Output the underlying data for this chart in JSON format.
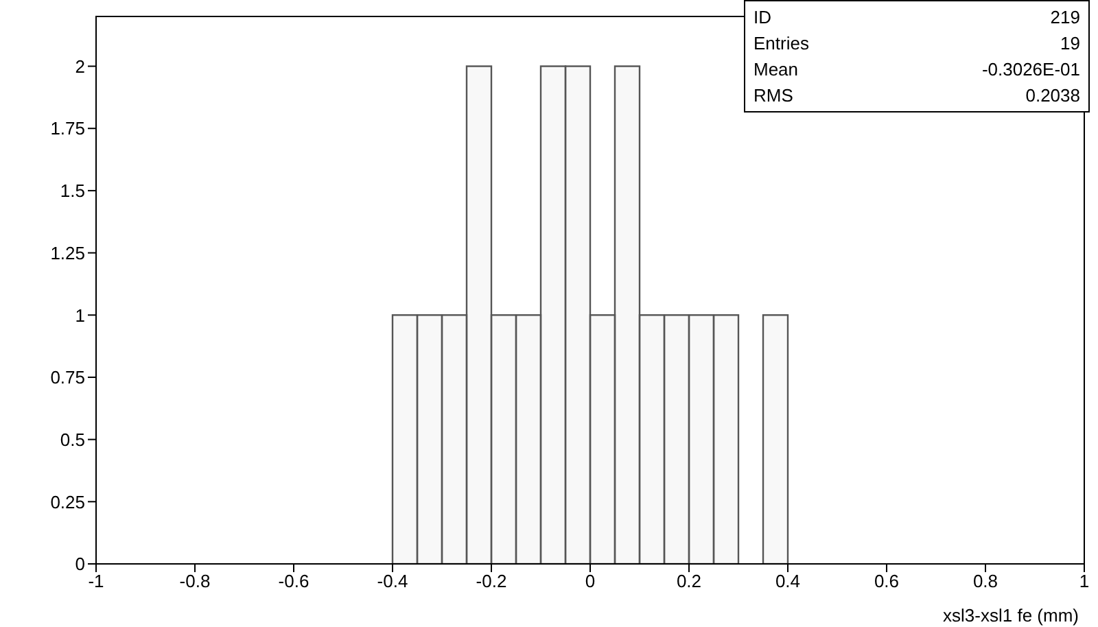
{
  "chart_data": {
    "type": "histogram",
    "xlabel": "xsl3-xsl1 fe (mm)",
    "bins": [
      -1,
      -0.95,
      -0.9,
      -0.85,
      -0.8,
      -0.75,
      -0.7,
      -0.65,
      -0.6,
      -0.55,
      -0.5,
      -0.45,
      -0.4,
      -0.35,
      -0.3,
      -0.25,
      -0.2,
      -0.15,
      -0.1,
      -0.05,
      0,
      0.05,
      0.1,
      0.15,
      0.2,
      0.25,
      0.3,
      0.35,
      0.4,
      0.45,
      0.5,
      0.55,
      0.6,
      0.65,
      0.7,
      0.75,
      0.8,
      0.85,
      0.9,
      0.95,
      1
    ],
    "values": [
      0,
      0,
      0,
      0,
      0,
      0,
      0,
      0,
      0,
      0,
      0,
      0,
      1,
      1,
      1,
      2,
      1,
      1,
      2,
      2,
      1,
      2,
      1,
      1,
      1,
      1,
      0,
      1,
      0,
      0,
      0,
      0,
      0,
      0,
      0,
      0,
      0,
      0,
      0,
      0
    ],
    "color": "#555555",
    "xlim": [
      -1,
      1
    ],
    "xticks": [
      -1,
      -0.8,
      -0.6,
      -0.4,
      -0.2,
      0,
      0.2,
      0.4,
      0.6,
      0.8,
      1
    ],
    "ylim": [
      0,
      2.2
    ],
    "yticks": [
      0,
      0.25,
      0.5,
      0.75,
      1,
      1.25,
      1.5,
      1.75,
      2
    ],
    "annotations": [
      "ID 219",
      "Entries 19",
      "Mean -0.3026E-01",
      "RMS 0.2038"
    ]
  }
}
